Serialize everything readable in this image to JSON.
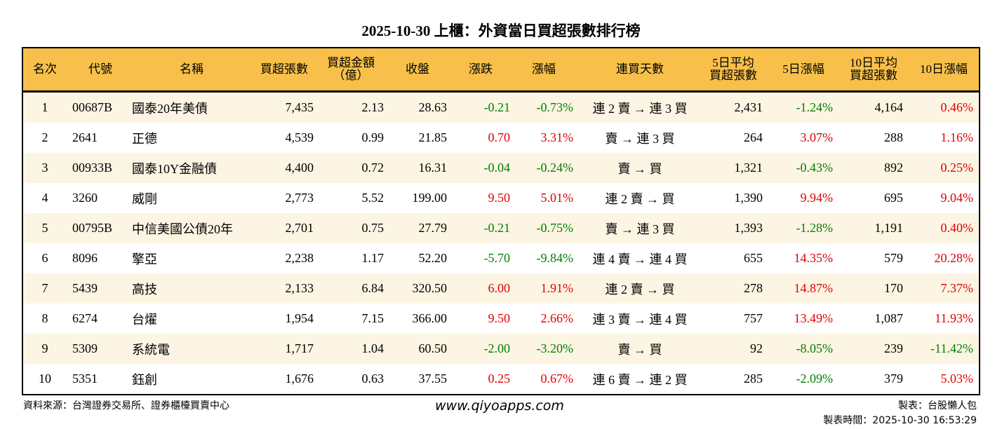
{
  "title": "2025-10-30 上櫃：外資當日買超張數排行榜",
  "colors": {
    "header_bg": "#f8c04a",
    "odd_row_bg": "#fdf5e3",
    "up": "#e00000",
    "down": "#008000"
  },
  "headers": [
    "名次",
    "代號",
    "名稱",
    "買超張數",
    "買超金額\n（億）",
    "收盤",
    "漲跌",
    "漲幅",
    "連買天數",
    "5日平均\n買超張數",
    "5日漲幅",
    "10日平均\n買超張數",
    "10日漲幅"
  ],
  "rows": [
    [
      "1",
      "00687B",
      "國泰20年美債",
      "7,435",
      "2.13",
      "28.63",
      "-0.21",
      "-0.73%",
      "連 2 賣 → 連 3 買",
      "2,431",
      "-1.24%",
      "4,164",
      "0.46%"
    ],
    [
      "2",
      "2641",
      "正德",
      "4,539",
      "0.99",
      "21.85",
      "0.70",
      "3.31%",
      "賣 → 連 3 買",
      "264",
      "3.07%",
      "288",
      "1.16%"
    ],
    [
      "3",
      "00933B",
      "國泰10Y金融債",
      "4,400",
      "0.72",
      "16.31",
      "-0.04",
      "-0.24%",
      "賣 → 買",
      "1,321",
      "-0.43%",
      "892",
      "0.25%"
    ],
    [
      "4",
      "3260",
      "威剛",
      "2,773",
      "5.52",
      "199.00",
      "9.50",
      "5.01%",
      "連 2 賣 → 買",
      "1,390",
      "9.94%",
      "695",
      "9.04%"
    ],
    [
      "5",
      "00795B",
      "中信美國公債20年",
      "2,701",
      "0.75",
      "27.79",
      "-0.21",
      "-0.75%",
      "賣 → 連 3 買",
      "1,393",
      "-1.28%",
      "1,191",
      "0.40%"
    ],
    [
      "6",
      "8096",
      "擎亞",
      "2,238",
      "1.17",
      "52.20",
      "-5.70",
      "-9.84%",
      "連 4 賣 → 連 4 買",
      "655",
      "14.35%",
      "579",
      "20.28%"
    ],
    [
      "7",
      "5439",
      "高技",
      "2,133",
      "6.84",
      "320.50",
      "6.00",
      "1.91%",
      "連 2 賣 → 買",
      "278",
      "14.87%",
      "170",
      "7.37%"
    ],
    [
      "8",
      "6274",
      "台燿",
      "1,954",
      "7.15",
      "366.00",
      "9.50",
      "2.66%",
      "連 3 賣 → 連 4 買",
      "757",
      "13.49%",
      "1,087",
      "11.93%"
    ],
    [
      "9",
      "5309",
      "系統電",
      "1,717",
      "1.04",
      "60.50",
      "-2.00",
      "-3.20%",
      "賣 → 買",
      "92",
      "-8.05%",
      "239",
      "-11.42%"
    ],
    [
      "10",
      "5351",
      "鈺創",
      "1,676",
      "0.63",
      "37.55",
      "0.25",
      "0.67%",
      "連 6 賣 → 連 2 買",
      "285",
      "-2.09%",
      "379",
      "5.03%"
    ]
  ],
  "footer": {
    "source": "資料來源：台灣證券交易所、證券櫃檯買賣中心",
    "website": "www.qiyoapps.com",
    "author": "製表：台股懶人包",
    "time": "製表時間：2025-10-30 16:53:29"
  }
}
